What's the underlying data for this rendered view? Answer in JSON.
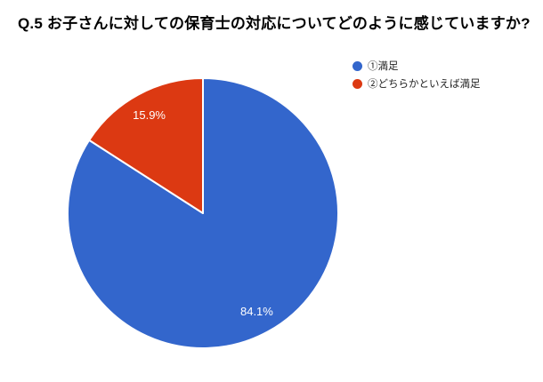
{
  "chart_data": {
    "type": "pie",
    "title": "Q.5 お子さんに対しての保育士の対応についてどのように感じていますか?",
    "slices": [
      {
        "label": "①満足",
        "value": 84.1,
        "pct_label": "84.1%",
        "color": "#3366cc"
      },
      {
        "label": "②どちらかといえば満足",
        "value": 15.9,
        "pct_label": "15.9%",
        "color": "#dc3912"
      }
    ],
    "start_angle_deg": 0,
    "direction": "clockwise",
    "slice_label_color": "#ffffff",
    "slice_border_color": "#ffffff",
    "legend_position": "right",
    "background": "#ffffff"
  }
}
